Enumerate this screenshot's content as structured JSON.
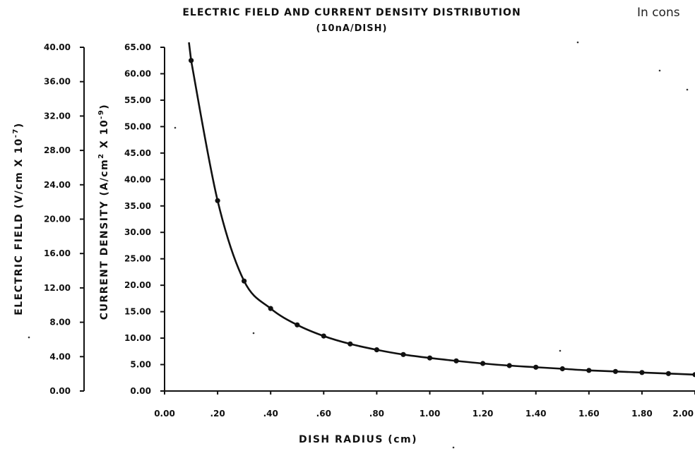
{
  "corner_text": "In cons",
  "chart_data": {
    "type": "line",
    "title": "ELECTRIC FIELD AND CURRENT DENSITY DISTRIBUTION",
    "subtitle": "(10nA/DISH)",
    "xlabel": "DISH RADIUS (cm)",
    "ylabel_left": "ELECTRIC FIELD (V/cm X 10",
    "ylabel_left_exp": "-7",
    "ylabel_left_end": ")",
    "ylabel_right": "CURRENT DENSITY (A/cm",
    "ylabel_right_sq": "2",
    "ylabel_right_mid": " X 10",
    "ylabel_right_exp": "-9",
    "ylabel_right_end": ")",
    "xlim": [
      0,
      2.0
    ],
    "ylim_electric_field": [
      0,
      40
    ],
    "ylim_current_density": [
      0,
      65
    ],
    "x_ticks": [
      "0.00",
      ".20",
      ".40",
      ".60",
      ".80",
      "1.00",
      "1.20",
      "1.40",
      "1.60",
      "1.80",
      "2.00"
    ],
    "x_tick_values": [
      0,
      0.2,
      0.4,
      0.6,
      0.8,
      1.0,
      1.2,
      1.4,
      1.6,
      1.8,
      2.0
    ],
    "y_ticks_electric_field": [
      "0.00",
      "4.00",
      "8.00",
      "12.00",
      "16.00",
      "20.00",
      "24.00",
      "28.00",
      "32.00",
      "36.00",
      "40.00"
    ],
    "y_tick_values_electric_field": [
      0,
      4,
      8,
      12,
      16,
      20,
      24,
      28,
      32,
      36,
      40
    ],
    "y_ticks_current_density": [
      "0.00",
      "5.00",
      "10.00",
      "15.00",
      "20.00",
      "25.00",
      "30.00",
      "35.00",
      "40.00",
      "45.00",
      "50.00",
      "55.00",
      "60.00",
      "65.00"
    ],
    "y_tick_values_current_density": [
      0,
      5,
      10,
      15,
      20,
      25,
      30,
      35,
      40,
      45,
      50,
      55,
      60,
      65
    ],
    "series": [
      {
        "axis": "current_density",
        "x": [
          0.1,
          0.2,
          0.3,
          0.4,
          0.5,
          0.6,
          0.7,
          0.8,
          0.9,
          1.0,
          1.1,
          1.2,
          1.3,
          1.4,
          1.5,
          1.6,
          1.7,
          1.8,
          1.9,
          2.0
        ],
        "values": [
          62.5,
          36.0,
          20.8,
          15.6,
          12.5,
          10.4,
          8.9,
          7.8,
          6.9,
          6.25,
          5.7,
          5.2,
          4.8,
          4.5,
          4.2,
          3.9,
          3.7,
          3.5,
          3.3,
          3.1
        ]
      }
    ],
    "grid": false
  }
}
